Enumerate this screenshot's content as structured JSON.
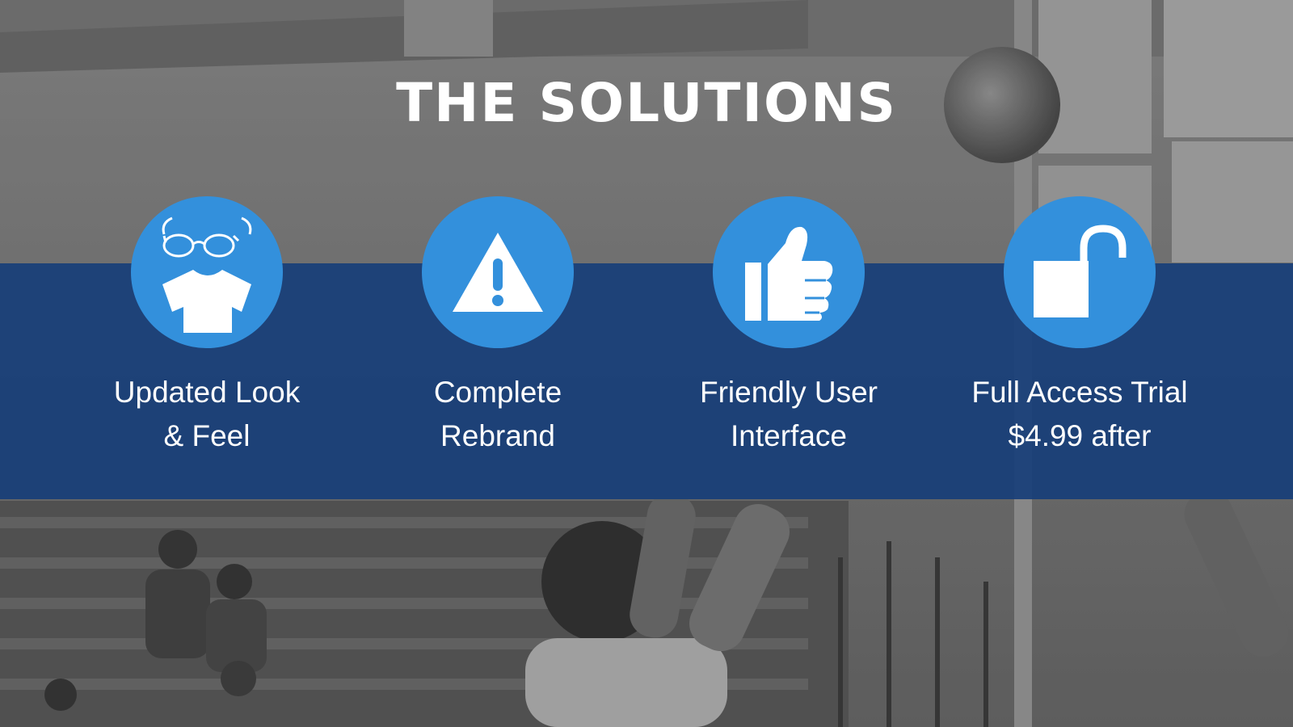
{
  "slide": {
    "title": "THE SOLUTIONS",
    "accent_color": "#3390dc",
    "band_color": "#183e78",
    "items": [
      {
        "icon": "tshirt-glasses-icon",
        "line1": "Updated Look",
        "line2": "& Feel"
      },
      {
        "icon": "warning-icon",
        "line1": "Complete",
        "line2": "Rebrand"
      },
      {
        "icon": "thumbs-up-icon",
        "line1": "Friendly User",
        "line2": "Interface"
      },
      {
        "icon": "unlocked-padlock-icon",
        "line1": "Full Access Trial",
        "line2": "$4.99 after"
      }
    ]
  }
}
